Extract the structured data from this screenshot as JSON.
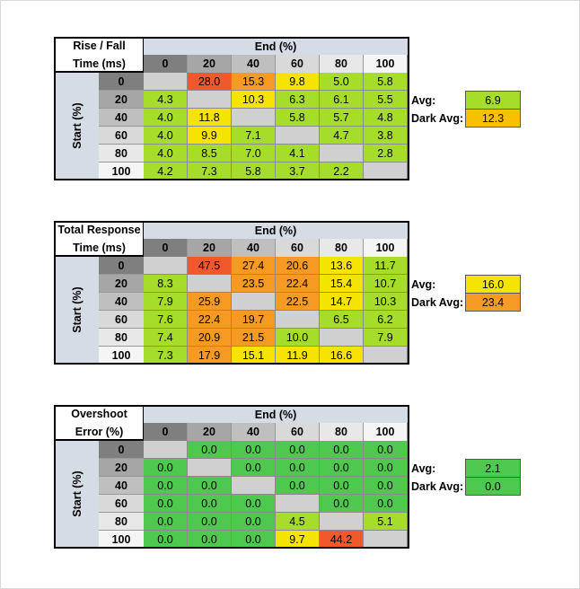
{
  "colors": {
    "header_gray": "#d6dce5",
    "diag_gray": "#d0d0d0",
    "green": "#4ec94e",
    "yellow_green": "#a6dd2a",
    "yellow": "#f4e400",
    "orange_yellow": "#f8c000",
    "orange": "#f59a23",
    "red_orange": "#f0592b"
  },
  "chart_data": [
    {
      "type": "table",
      "title_lines": [
        "Rise / Fall",
        "Time (ms)"
      ],
      "col_axis_label": "End (%)",
      "row_axis_label": "Start (%)",
      "columns": [
        "0",
        "20",
        "40",
        "60",
        "80",
        "100"
      ],
      "rows": [
        "0",
        "20",
        "40",
        "60",
        "80",
        "100"
      ],
      "values": [
        [
          "",
          "28.0",
          "15.3",
          "9.8",
          "5.0",
          "5.8"
        ],
        [
          "4.3",
          "",
          "10.3",
          "6.3",
          "6.1",
          "5.5"
        ],
        [
          "4.0",
          "11.8",
          "",
          "5.8",
          "5.7",
          "4.8"
        ],
        [
          "4.0",
          "9.9",
          "7.1",
          "",
          "4.7",
          "3.8"
        ],
        [
          "4.0",
          "8.5",
          "7.0",
          "4.1",
          "",
          "2.8"
        ],
        [
          "4.2",
          "7.3",
          "5.8",
          "3.7",
          "2.2",
          ""
        ]
      ],
      "colors": [
        [
          "diag",
          "red",
          "orange",
          "yellow",
          "yellow_green",
          "yellow_green"
        ],
        [
          "yellow_green",
          "diag",
          "yellow",
          "yellow_green",
          "yellow_green",
          "yellow_green"
        ],
        [
          "yellow_green",
          "yellow",
          "diag",
          "yellow_green",
          "yellow_green",
          "yellow_green"
        ],
        [
          "yellow_green",
          "yellow",
          "yellow_green",
          "diag",
          "yellow_green",
          "yellow_green"
        ],
        [
          "yellow_green",
          "yellow_green",
          "yellow_green",
          "yellow_green",
          "diag",
          "yellow_green"
        ],
        [
          "yellow_green",
          "yellow_green",
          "yellow_green",
          "yellow_green",
          "yellow_green",
          "diag"
        ]
      ],
      "avg_label": "Avg:",
      "avg": "6.9",
      "avg_color": "yellow_green",
      "dark_avg_label": "Dark Avg:",
      "dark_avg": "12.3",
      "dark_avg_color": "orange_yellow"
    },
    {
      "type": "table",
      "title_lines": [
        "Total Response",
        "Time (ms)"
      ],
      "col_axis_label": "End (%)",
      "row_axis_label": "Start (%)",
      "columns": [
        "0",
        "20",
        "40",
        "60",
        "80",
        "100"
      ],
      "rows": [
        "0",
        "20",
        "40",
        "60",
        "80",
        "100"
      ],
      "values": [
        [
          "",
          "47.5",
          "27.4",
          "20.6",
          "13.6",
          "11.7"
        ],
        [
          "8.3",
          "",
          "23.5",
          "22.4",
          "15.4",
          "10.7"
        ],
        [
          "7.9",
          "25.9",
          "",
          "22.5",
          "14.7",
          "10.3"
        ],
        [
          "7.6",
          "22.4",
          "19.7",
          "",
          "6.5",
          "6.2"
        ],
        [
          "7.4",
          "20.9",
          "21.5",
          "10.0",
          "",
          "7.9"
        ],
        [
          "7.3",
          "17.9",
          "15.1",
          "11.9",
          "16.6",
          ""
        ]
      ],
      "colors": [
        [
          "diag",
          "red_orange",
          "orange",
          "orange",
          "yellow",
          "yellow_green"
        ],
        [
          "yellow_green",
          "diag",
          "orange",
          "orange",
          "yellow",
          "yellow_green"
        ],
        [
          "yellow_green",
          "orange",
          "diag",
          "orange",
          "yellow",
          "yellow_green"
        ],
        [
          "yellow_green",
          "orange",
          "orange",
          "diag",
          "yellow_green",
          "yellow_green"
        ],
        [
          "yellow_green",
          "orange",
          "orange",
          "yellow_green",
          "diag",
          "yellow_green"
        ],
        [
          "yellow_green",
          "orange",
          "yellow",
          "yellow",
          "yellow",
          "diag"
        ]
      ],
      "avg_label": "Avg:",
      "avg": "16.0",
      "avg_color": "yellow",
      "dark_avg_label": "Dark Avg:",
      "dark_avg": "23.4",
      "dark_avg_color": "orange"
    },
    {
      "type": "table",
      "title_lines": [
        "Overshoot",
        "Error (%)"
      ],
      "col_axis_label": "End (%)",
      "row_axis_label": "Start (%)",
      "columns": [
        "0",
        "20",
        "40",
        "60",
        "80",
        "100"
      ],
      "rows": [
        "0",
        "20",
        "40",
        "60",
        "80",
        "100"
      ],
      "values": [
        [
          "",
          "0.0",
          "0.0",
          "0.0",
          "0.0",
          "0.0"
        ],
        [
          "0.0",
          "",
          "0.0",
          "0.0",
          "0.0",
          "0.0"
        ],
        [
          "0.0",
          "0.0",
          "",
          "0.0",
          "0.0",
          "0.0"
        ],
        [
          "0.0",
          "0.0",
          "0.0",
          "",
          "0.0",
          "0.0"
        ],
        [
          "0.0",
          "0.0",
          "0.0",
          "4.5",
          "",
          "5.1"
        ],
        [
          "0.0",
          "0.0",
          "0.0",
          "9.7",
          "44.2",
          ""
        ]
      ],
      "colors": [
        [
          "diag",
          "green",
          "green",
          "green",
          "green",
          "green"
        ],
        [
          "green",
          "diag",
          "green",
          "green",
          "green",
          "green"
        ],
        [
          "green",
          "green",
          "diag",
          "green",
          "green",
          "green"
        ],
        [
          "green",
          "green",
          "green",
          "diag",
          "green",
          "green"
        ],
        [
          "green",
          "green",
          "green",
          "yellow_green",
          "diag",
          "yellow_green"
        ],
        [
          "green",
          "green",
          "green",
          "yellow",
          "red_orange",
          "diag"
        ]
      ],
      "avg_label": "Avg:",
      "avg": "2.1",
      "avg_color": "green",
      "dark_avg_label": "Dark Avg:",
      "dark_avg": "0.0",
      "dark_avg_color": "green"
    }
  ]
}
